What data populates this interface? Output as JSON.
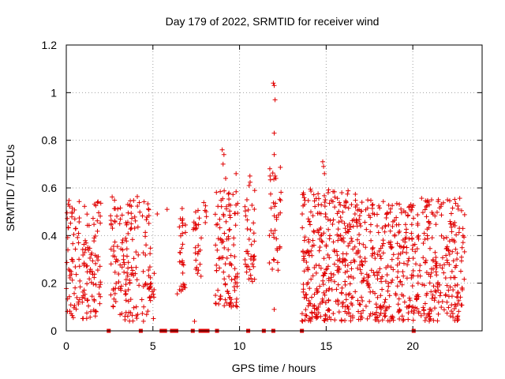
{
  "chart_data": {
    "type": "scatter",
    "title": "Day 179 of 2022, SRMTID for receiver wind",
    "xlabel": "GPS time / hours",
    "ylabel": "SRMTID / TECUs",
    "xlim": [
      0,
      24
    ],
    "ylim": [
      0,
      1.2
    ],
    "x_ticks": [
      0,
      5,
      10,
      15,
      20
    ],
    "x_tick_labels": [
      "0",
      "5",
      "10",
      "15",
      "20"
    ],
    "y_ticks": [
      0,
      0.2,
      0.4,
      0.6,
      0.8,
      1.0,
      1.2
    ],
    "y_tick_labels": [
      "0",
      "0.2",
      "0.4",
      "0.6",
      "0.8",
      "1",
      "1.2"
    ],
    "grid": true,
    "marker_color": "#e00000",
    "segments": [
      {
        "start": 0.0,
        "end": 2.0,
        "low": 0.05,
        "high": 0.55,
        "count": 150
      },
      {
        "start": 2.55,
        "end": 4.9,
        "low": 0.04,
        "high": 0.58,
        "count": 170
      },
      {
        "start": 4.95,
        "end": 5.1,
        "low": 0.05,
        "high": 0.35,
        "count": 6
      },
      {
        "start": 5.2,
        "end": 5.3,
        "low": 0.49,
        "high": 0.5,
        "count": 1
      },
      {
        "start": 5.8,
        "end": 5.9,
        "low": 0.5,
        "high": 0.51,
        "count": 1
      },
      {
        "start": 6.4,
        "end": 6.9,
        "low": 0.15,
        "high": 0.53,
        "count": 30
      },
      {
        "start": 7.3,
        "end": 7.8,
        "low": 0.2,
        "high": 0.52,
        "count": 25
      },
      {
        "start": 7.9,
        "end": 8.1,
        "low": 0.45,
        "high": 0.6,
        "count": 6
      },
      {
        "start": 8.6,
        "end": 9.9,
        "low": 0.1,
        "high": 0.6,
        "count": 110
      },
      {
        "start": 10.3,
        "end": 10.9,
        "low": 0.2,
        "high": 0.65,
        "count": 40
      },
      {
        "start": 11.7,
        "end": 12.4,
        "low": 0.25,
        "high": 0.7,
        "count": 35
      },
      {
        "start": 13.6,
        "end": 16.8,
        "low": 0.04,
        "high": 0.6,
        "count": 320
      },
      {
        "start": 16.8,
        "end": 19.9,
        "low": 0.04,
        "high": 0.55,
        "count": 260
      },
      {
        "start": 19.9,
        "end": 23.0,
        "low": 0.04,
        "high": 0.56,
        "count": 260
      }
    ],
    "outliers": [
      {
        "x": 9.0,
        "y": 0.76
      },
      {
        "x": 9.1,
        "y": 0.74
      },
      {
        "x": 9.05,
        "y": 0.7
      },
      {
        "x": 9.2,
        "y": 0.64
      },
      {
        "x": 9.8,
        "y": 0.66
      },
      {
        "x": 10.6,
        "y": 0.65
      },
      {
        "x": 10.55,
        "y": 0.61
      },
      {
        "x": 11.95,
        "y": 1.04
      },
      {
        "x": 12.0,
        "y": 1.03
      },
      {
        "x": 12.05,
        "y": 0.97
      },
      {
        "x": 12.0,
        "y": 0.83
      },
      {
        "x": 12.0,
        "y": 0.74
      },
      {
        "x": 12.05,
        "y": 0.65
      },
      {
        "x": 12.1,
        "y": 0.64
      },
      {
        "x": 12.0,
        "y": 0.09
      },
      {
        "x": 14.8,
        "y": 0.71
      },
      {
        "x": 14.85,
        "y": 0.69
      },
      {
        "x": 14.9,
        "y": 0.66
      },
      {
        "x": 7.4,
        "y": 0.04
      },
      {
        "x": 15.9,
        "y": 0.58
      },
      {
        "x": 22.0,
        "y": 0.55
      }
    ],
    "zero_markers": [
      2.45,
      4.3,
      5.5,
      5.6,
      5.7,
      6.1,
      6.25,
      6.35,
      7.3,
      7.75,
      7.95,
      8.15,
      8.7,
      10.5,
      11.4,
      11.95,
      13.6,
      20.05
    ]
  }
}
